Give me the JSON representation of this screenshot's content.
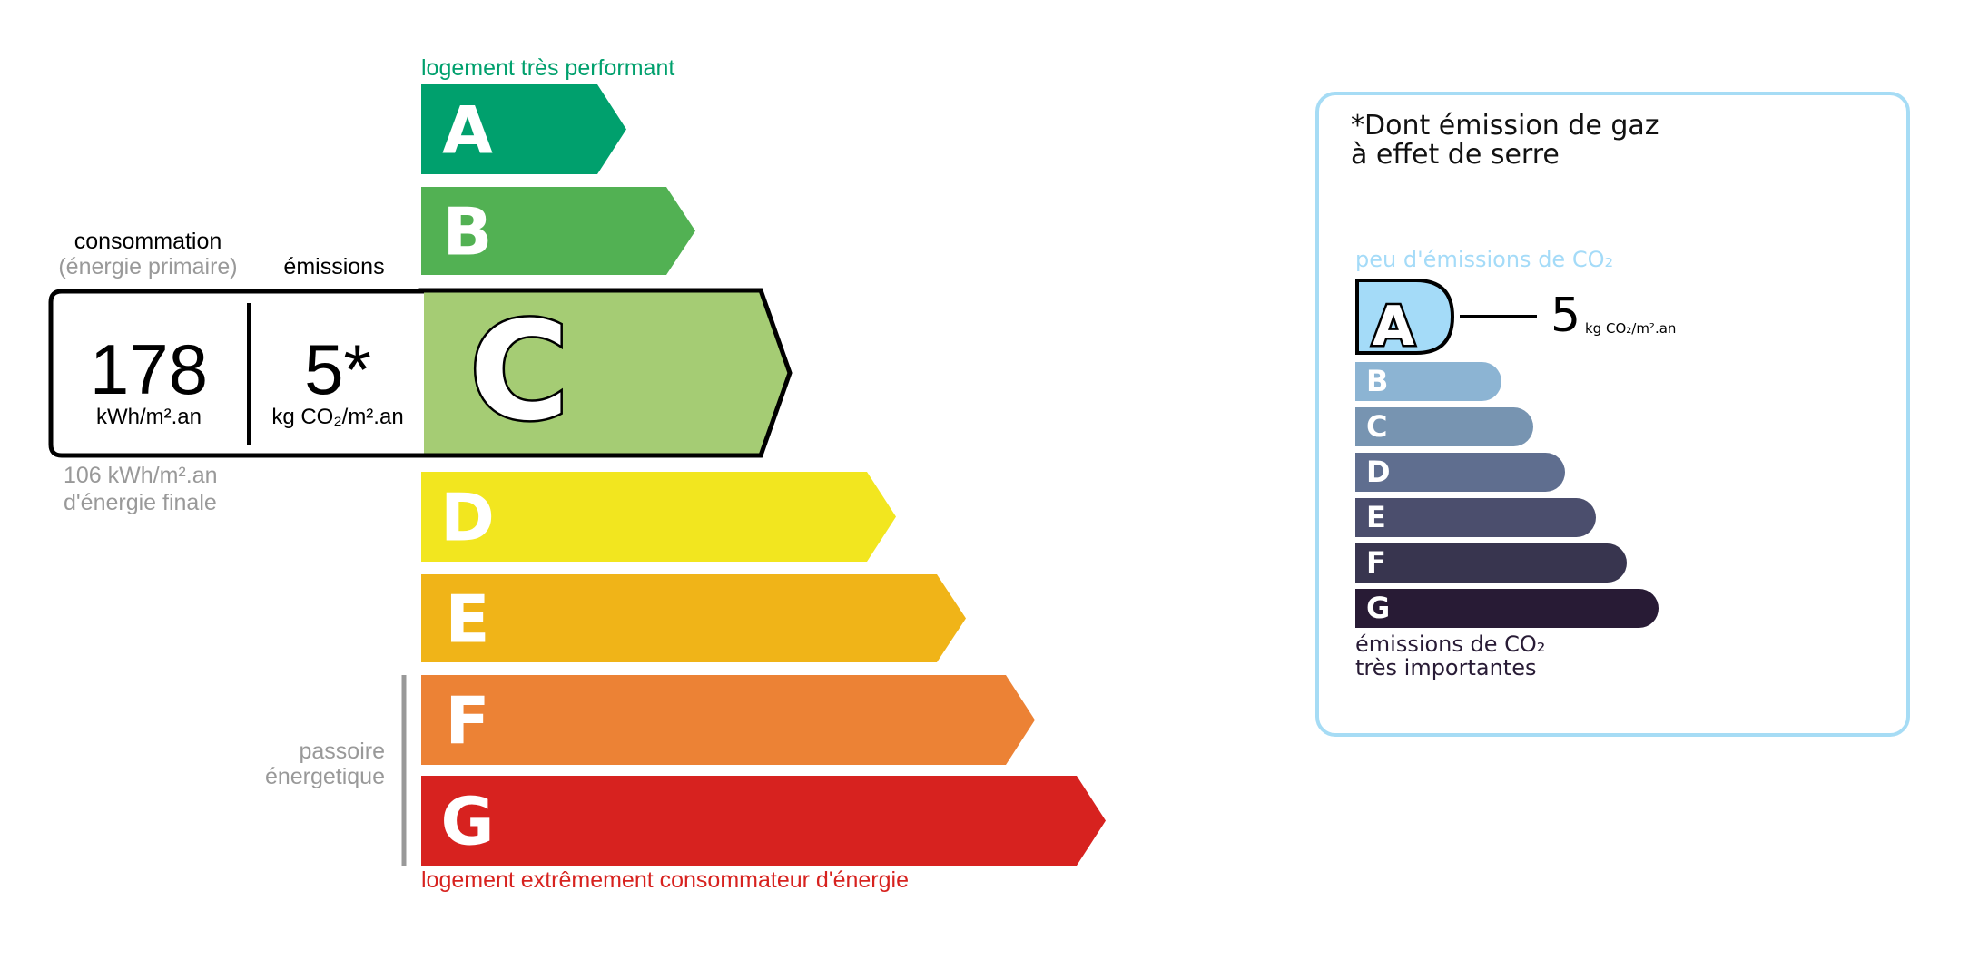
{
  "energy": {
    "top_label": "logement très performant",
    "bottom_label": "logement extrêmement consommateur d'énergie",
    "passoire_label": [
      "passoire",
      "énergetique"
    ],
    "classes": [
      {
        "letter": "A",
        "color": "#00a06d"
      },
      {
        "letter": "B",
        "color": "#52b153"
      },
      {
        "letter": "C",
        "color": "#a5cc74"
      },
      {
        "letter": "D",
        "color": "#f2e61f"
      },
      {
        "letter": "E",
        "color": "#f0b418"
      },
      {
        "letter": "F",
        "color": "#ec8235"
      },
      {
        "letter": "G",
        "color": "#d7221f"
      }
    ],
    "current_class": "C",
    "consumption_header": "consommation",
    "consumption_subheader": "(énergie primaire)",
    "emissions_header": "émissions",
    "consumption_value": "178",
    "consumption_unit": "kWh/m².an",
    "emissions_value": "5*",
    "emissions_unit": "kg CO₂/m².an",
    "final_energy_value": "106 kWh/m².an",
    "final_energy_label": "d'énergie finale"
  },
  "ges": {
    "title_line1": "*Dont émission de gaz",
    "title_line2": "à effet de serre",
    "top_label": "peu d'émissions de CO₂",
    "bottom_label_line1": "émissions de CO₂",
    "bottom_label_line2": "très importantes",
    "current_class": "A",
    "value": "5",
    "unit": "kg CO₂/m².an",
    "classes": [
      {
        "letter": "A",
        "color": "#a4dbf8"
      },
      {
        "letter": "B",
        "color": "#8cb4d3"
      },
      {
        "letter": "C",
        "color": "#7794b1"
      },
      {
        "letter": "D",
        "color": "#5f6e8f"
      },
      {
        "letter": "E",
        "color": "#4b4e6d"
      },
      {
        "letter": "F",
        "color": "#38354f"
      },
      {
        "letter": "G",
        "color": "#281b35"
      }
    ],
    "border_color": "#a6dcf5"
  }
}
